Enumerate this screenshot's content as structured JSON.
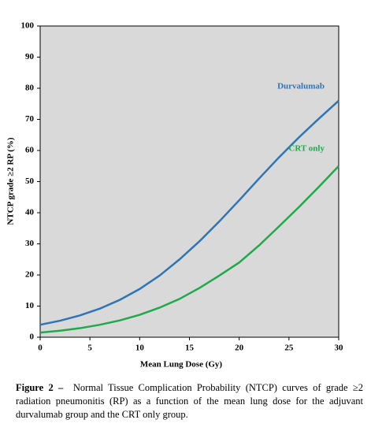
{
  "chart_data": {
    "type": "line",
    "x_label": "Mean Lung Dose (Gy)",
    "y_label": "NTCP grade ≥2 RP (%)",
    "x": [
      0,
      2,
      4,
      6,
      8,
      10,
      12,
      14,
      16,
      18,
      20,
      22,
      24,
      26,
      28,
      30
    ],
    "series": [
      {
        "name": "Durvalumab",
        "color": "#2e75b6",
        "values": [
          4,
          5.3,
          7,
          9.2,
          12,
          15.5,
          19.8,
          25,
          30.8,
          37.2,
          44,
          51,
          57.8,
          64.2,
          70.2,
          76
        ]
      },
      {
        "name": "CRT only",
        "color": "#1faa4a",
        "values": [
          1.5,
          2.1,
          2.9,
          4,
          5.4,
          7.2,
          9.5,
          12.3,
          15.8,
          19.8,
          24,
          29.5,
          35.6,
          41.8,
          48.3,
          55
        ]
      }
    ],
    "xlim": [
      0,
      30
    ],
    "xticks": [
      0,
      5,
      10,
      15,
      20,
      25,
      30
    ],
    "ylim": [
      0,
      100
    ],
    "yticks": [
      0,
      10,
      20,
      30,
      40,
      50,
      60,
      70,
      80,
      90,
      100
    ],
    "background": "#d9d9d9",
    "caption_label": "Figure 2 –",
    "caption": "Normal Tissue Complication Probability (NTCP) curves of grade ≥2 radiation pneumonitis (RP) as a function of the mean lung dose for the adjuvant durvalumab group and the CRT only group."
  }
}
